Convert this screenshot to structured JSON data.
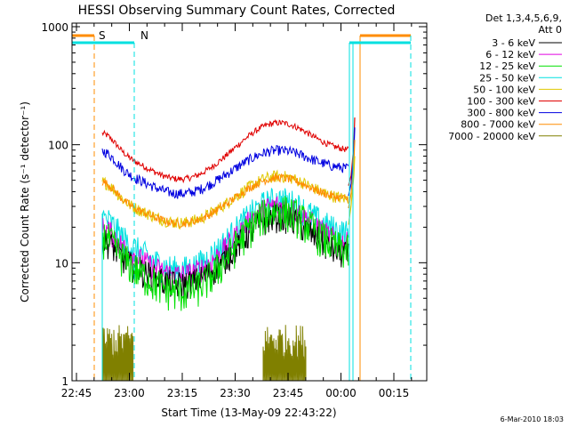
{
  "chart_data": {
    "type": "line",
    "title": "HESSI Observing Summary Count Rates, Corrected",
    "xlabel": "Start Time (13-May-09 22:43:22)",
    "ylabel": "Corrected Count Rate (s⁻¹ detector⁻¹)",
    "yscale": "log",
    "ylim": [
      1,
      1000
    ],
    "yticks": [
      "1",
      "10",
      "100",
      "1000"
    ],
    "xticks": [
      "22:45",
      "23:00",
      "23:15",
      "23:30",
      "23:45",
      "00:00",
      "00:15"
    ],
    "legend_header": [
      "Det 1,3,4,5,6,9,",
      "Att 0"
    ],
    "series": [
      {
        "name": "3 - 6 keV",
        "color": "#000000"
      },
      {
        "name": "6 - 12 keV",
        "color": "#e000e0"
      },
      {
        "name": "12 - 25 keV",
        "color": "#00e000"
      },
      {
        "name": "25 - 50 keV",
        "color": "#00e0e0"
      },
      {
        "name": "50 - 100 keV",
        "color": "#e0c800"
      },
      {
        "name": "100 - 300 keV",
        "color": "#e00000"
      },
      {
        "name": "300 - 800 keV",
        "color": "#0000e0"
      },
      {
        "name": "800 - 7000 keV",
        "color": "#ff8c00"
      },
      {
        "name": "7000 - 20000 keV",
        "color": "#808000"
      }
    ],
    "flags": [
      {
        "label": "S",
        "color": "#ff8c00"
      },
      {
        "label": "N",
        "color": "#00e0e0"
      }
    ],
    "footer": "6-Mar-2010 18:03"
  }
}
